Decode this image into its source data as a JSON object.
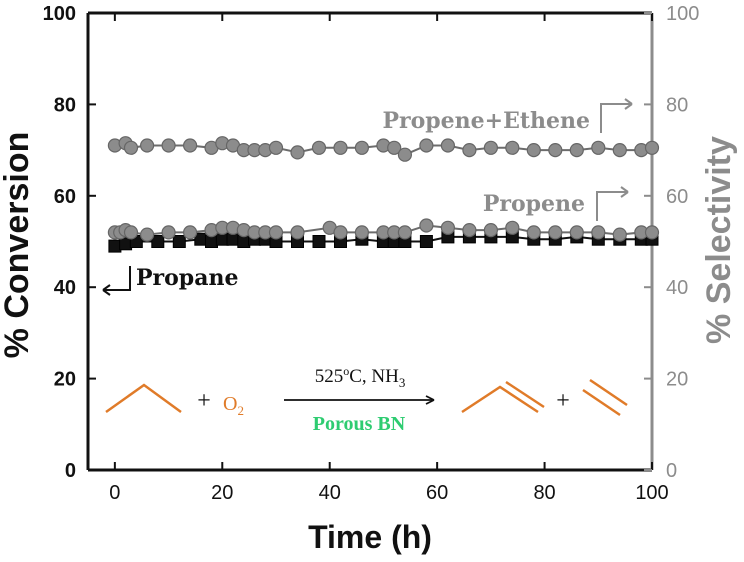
{
  "chart_data": {
    "type": "line",
    "title": "",
    "xlabel": "Time (h)",
    "ylabel_left": "% Conversion",
    "ylabel_right": "% Selectivity",
    "xlim": [
      -5,
      100
    ],
    "ylim_left": [
      0,
      100
    ],
    "ylim_right": [
      0,
      100
    ],
    "x_ticks": [
      "0",
      "20",
      "40",
      "60",
      "80",
      "100"
    ],
    "y_ticks_left": [
      "0",
      "20",
      "40",
      "60",
      "80",
      "100"
    ],
    "y_ticks_right": [
      "0",
      "20",
      "40",
      "60",
      "80",
      "100"
    ],
    "grid": false,
    "series": [
      {
        "name": "Propane",
        "axis": "left",
        "marker": "square",
        "color": "#111111",
        "x": [
          0,
          2,
          4,
          8,
          12,
          16,
          18,
          20,
          22,
          24,
          26,
          28,
          30,
          34,
          38,
          42,
          46,
          50,
          52,
          54,
          58,
          62,
          66,
          70,
          74,
          78,
          82,
          86,
          90,
          94,
          98,
          100
        ],
        "y": [
          49,
          49.5,
          50,
          50,
          50,
          50.5,
          50,
          50.5,
          50.5,
          50,
          50.5,
          50.5,
          50,
          50,
          50,
          50,
          50.5,
          50,
          50,
          50,
          50,
          51,
          51,
          51,
          51,
          50.5,
          50.5,
          51,
          50.5,
          50.5,
          50.5,
          50.5
        ]
      },
      {
        "name": "Propene",
        "axis": "right",
        "marker": "circle",
        "color": "#8c8c8c",
        "x": [
          0,
          1,
          2,
          3,
          6,
          10,
          14,
          18,
          20,
          22,
          24,
          26,
          28,
          30,
          34,
          40,
          42,
          46,
          50,
          52,
          54,
          58,
          62,
          66,
          70,
          74,
          78,
          82,
          86,
          90,
          94,
          98,
          100
        ],
        "y": [
          52,
          52,
          52.5,
          52,
          51.5,
          52,
          52,
          52.5,
          53,
          53,
          52.5,
          52,
          52,
          52,
          52,
          53,
          52,
          52,
          52,
          52,
          52,
          53.5,
          53,
          52.5,
          52.5,
          53,
          52,
          52,
          52,
          52,
          51.5,
          52,
          52
        ]
      },
      {
        "name": "Propene+Ethene",
        "axis": "right",
        "marker": "circle",
        "color": "#8c8c8c",
        "x": [
          0,
          2,
          3,
          6,
          10,
          14,
          18,
          20,
          22,
          24,
          26,
          28,
          30,
          34,
          38,
          42,
          46,
          50,
          52,
          54,
          58,
          62,
          66,
          70,
          74,
          78,
          82,
          86,
          90,
          94,
          98,
          100
        ],
        "y": [
          71,
          71.5,
          70.5,
          71,
          71,
          71,
          70.5,
          71.5,
          71,
          70,
          70,
          70,
          70.5,
          69.5,
          70.5,
          70.5,
          70.5,
          71,
          70.5,
          69,
          71,
          71,
          70,
          70.5,
          70.5,
          70,
          70,
          70,
          70.5,
          70,
          70,
          70.5
        ]
      }
    ],
    "annotations": [
      {
        "text": "Propane",
        "arrow": "left"
      },
      {
        "text": "Propene",
        "arrow": "right"
      },
      {
        "text": "Propene+Ethene",
        "arrow": "right"
      }
    ],
    "reaction": {
      "reactant_plus": "+",
      "oxidant": "O",
      "oxidant_sub": "2",
      "condition_temp": "525",
      "condition_temp_sup": "o",
      "condition_temp_unit": "C, NH",
      "condition_nh_sub": "3",
      "catalyst": "Porous BN",
      "product_plus": "+",
      "colors": {
        "molecule": "#e07b29",
        "catalyst": "#2ecc71",
        "text": "#111111"
      }
    },
    "colors": {
      "left_axis": "#111111",
      "right_axis": "#8c8c8c",
      "frame": "#111111"
    }
  }
}
